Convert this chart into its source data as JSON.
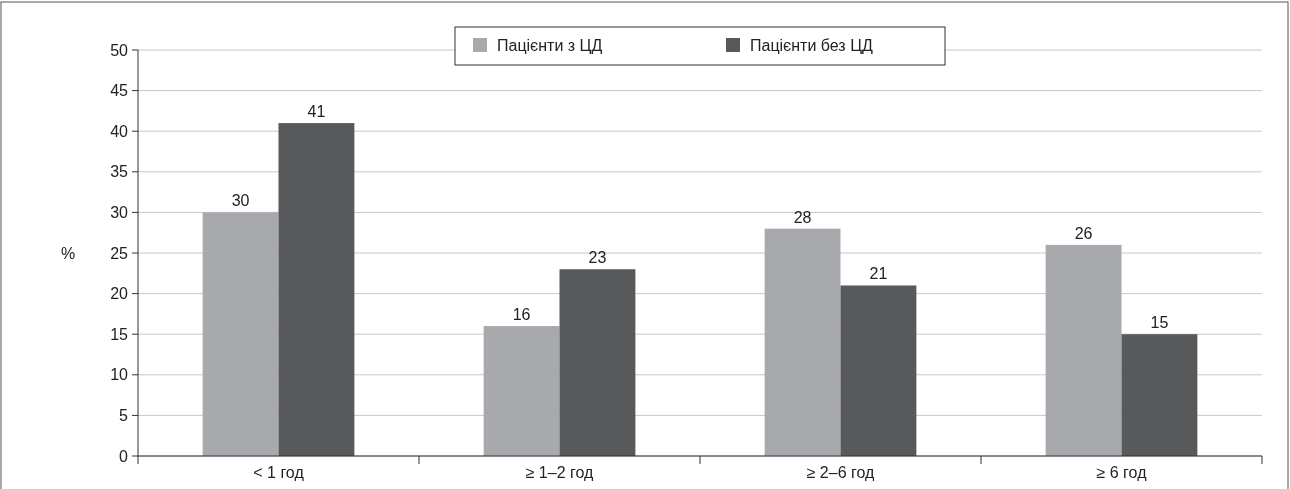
{
  "chart_data": {
    "type": "bar",
    "ylabel": "%",
    "categories": [
      "< 1 год",
      "≥ 1–2 год",
      "≥ 2–6 год",
      "≥ 6 год"
    ],
    "series": [
      {
        "name": "Пацієнти з ЦД",
        "color": "#a7a9ac",
        "values": [
          30,
          16,
          28,
          26
        ]
      },
      {
        "name": "Пацієнти без ЦД",
        "color": "#58595b",
        "values": [
          41,
          23,
          21,
          15
        ]
      }
    ],
    "ylim": [
      0,
      50
    ],
    "yticks": [
      0,
      5,
      10,
      15,
      20,
      25,
      30,
      35,
      40,
      45,
      50
    ],
    "grid": "y",
    "legend": "top",
    "data_labels": true
  }
}
